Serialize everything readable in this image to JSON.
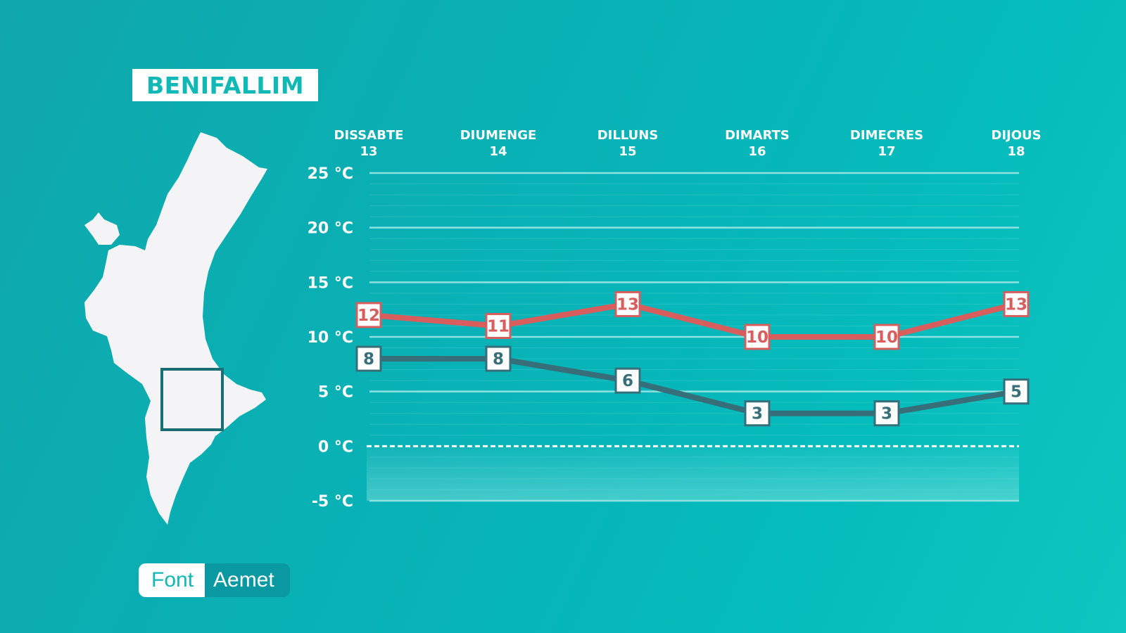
{
  "title": "BENIFALLIM",
  "source": {
    "label": "Font",
    "value": "Aemet"
  },
  "colors": {
    "max": "#d85e5e",
    "min": "#366e79",
    "grid": "#8ee3e2",
    "background": "#08b2b6"
  },
  "map": {
    "region_icon": "valencia-region-map",
    "marker": "location-square"
  },
  "chart_data": {
    "type": "line",
    "categories": [
      "DISSABTE 13",
      "DIUMENGE 14",
      "DILLUNS 15",
      "DIMARTS 16",
      "DIMECRES 17",
      "DIJOUS 18"
    ],
    "category_names": [
      "DISSABTE",
      "DIUMENGE",
      "DILLUNS",
      "DIMARTS",
      "DIMECRES",
      "DIJOUS"
    ],
    "category_dates": [
      "13",
      "14",
      "15",
      "16",
      "17",
      "18"
    ],
    "series": [
      {
        "key": "max",
        "values": [
          12,
          11,
          13,
          10,
          10,
          13
        ]
      },
      {
        "key": "min",
        "values": [
          8,
          8,
          6,
          3,
          3,
          5
        ]
      }
    ],
    "yticks": [
      25,
      20,
      15,
      10,
      5,
      0,
      -5
    ],
    "ytick_labels": [
      "25 °C",
      "20 °C",
      "15 °C",
      "10 °C",
      "5 °C",
      "0 °C",
      "-5 °C"
    ],
    "ylim": [
      -5,
      25
    ],
    "grid": true
  }
}
